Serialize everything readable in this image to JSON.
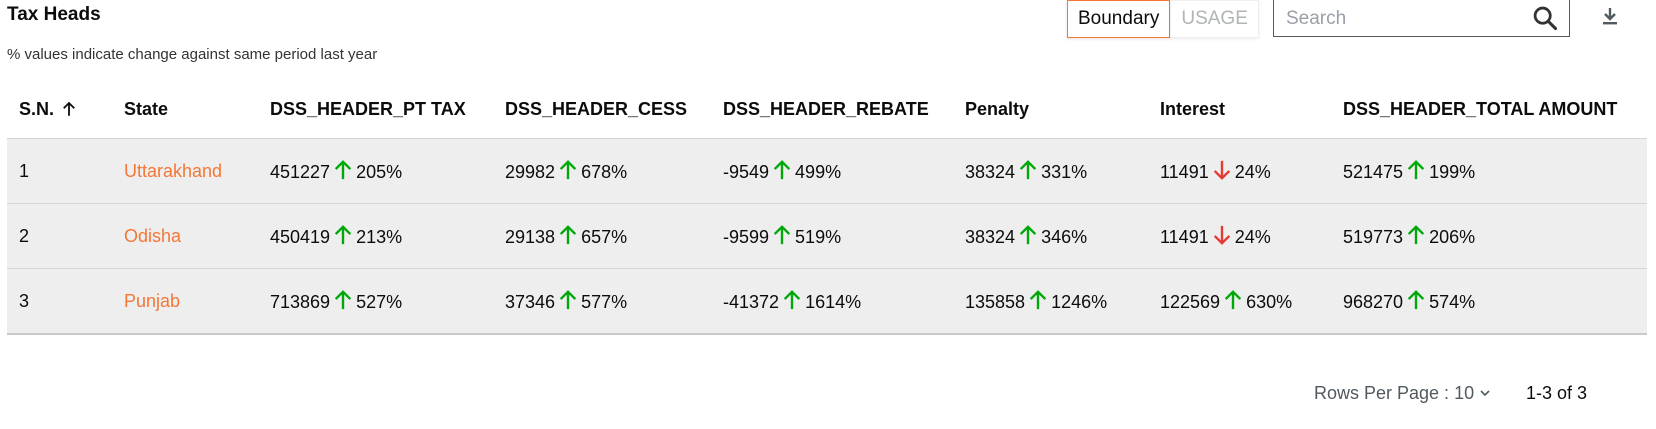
{
  "header": {
    "title": "Tax Heads",
    "subtitle": "% values indicate change against same period last year",
    "toggle": {
      "active": "Boundary",
      "inactive": "USAGE"
    },
    "search": {
      "placeholder": "Search",
      "value": ""
    },
    "icons": {
      "search": "search-icon",
      "download": "download-icon"
    }
  },
  "table": {
    "columns": [
      "S.N.",
      "State",
      "DSS_HEADER_PT TAX",
      "DSS_HEADER_CESS",
      "DSS_HEADER_REBATE",
      "Penalty",
      "Interest",
      "DSS_HEADER_TOTAL AMOUNT"
    ],
    "sort_icon": "arrow-up-icon",
    "rows": [
      {
        "sn": "1",
        "state": "Uttarakhand",
        "pt_tax": {
          "value": "451227",
          "dir": "up",
          "pct": "205%"
        },
        "cess": {
          "value": "29982",
          "dir": "up",
          "pct": "678%"
        },
        "rebate": {
          "value": "-9549",
          "dir": "up",
          "pct": "499%"
        },
        "penalty": {
          "value": "38324",
          "dir": "up",
          "pct": "331%"
        },
        "interest": {
          "value": "11491",
          "dir": "down",
          "pct": "24%"
        },
        "total": {
          "value": "521475",
          "dir": "up",
          "pct": "199%"
        }
      },
      {
        "sn": "2",
        "state": "Odisha",
        "pt_tax": {
          "value": "450419",
          "dir": "up",
          "pct": "213%"
        },
        "cess": {
          "value": "29138",
          "dir": "up",
          "pct": "657%"
        },
        "rebate": {
          "value": "-9599",
          "dir": "up",
          "pct": "519%"
        },
        "penalty": {
          "value": "38324",
          "dir": "up",
          "pct": "346%"
        },
        "interest": {
          "value": "11491",
          "dir": "down",
          "pct": "24%"
        },
        "total": {
          "value": "519773",
          "dir": "up",
          "pct": "206%"
        }
      },
      {
        "sn": "3",
        "state": "Punjab",
        "pt_tax": {
          "value": "713869",
          "dir": "up",
          "pct": "527%"
        },
        "cess": {
          "value": "37346",
          "dir": "up",
          "pct": "577%"
        },
        "rebate": {
          "value": "-41372",
          "dir": "up",
          "pct": "1614%"
        },
        "penalty": {
          "value": "135858",
          "dir": "up",
          "pct": "1246%"
        },
        "interest": {
          "value": "122569",
          "dir": "up",
          "pct": "630%"
        },
        "total": {
          "value": "968270",
          "dir": "up",
          "pct": "574%"
        }
      }
    ]
  },
  "pagination": {
    "rows_per_page_label": "Rows Per Page :",
    "rows_per_page_value": "10",
    "range": "1-3 of 3"
  },
  "colors": {
    "accent": "#f47738",
    "up": "#00a80a",
    "down": "#e53935",
    "row_bg": "#eeeeee"
  }
}
